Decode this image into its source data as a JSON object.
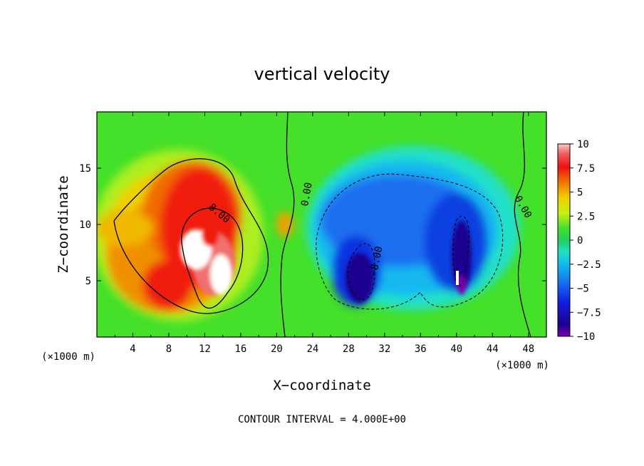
{
  "chart_data": {
    "type": "heatmap",
    "title": "vertical velocity",
    "xlabel": "X−coordinate",
    "ylabel": "Z−coordinate",
    "x_unit": "(×1000 m)",
    "z_unit": "(×1000 m)",
    "xlim": [
      0,
      50
    ],
    "ylim": [
      0,
      20
    ],
    "x_ticks": [
      "4",
      "8",
      "12",
      "16",
      "20",
      "24",
      "28",
      "32",
      "36",
      "40",
      "44",
      "48"
    ],
    "y_ticks": [
      "5",
      "10",
      "15"
    ],
    "colorbar": {
      "min": -10,
      "max": 10,
      "ticks": [
        "10",
        "7.5",
        "5",
        "2.5",
        "0",
        "−2.5",
        "−5",
        "−7.5",
        "−10"
      ]
    },
    "contour_labels": [
      "8.00",
      "0.00",
      "−8.00",
      "0.00"
    ],
    "contour_interval_text": "CONTOUR INTERVAL = 4.000E+00",
    "features": [
      {
        "x": 12.5,
        "z": 8.5,
        "w": 11,
        "note": "updraft maximum"
      },
      {
        "x": 10,
        "z": 5,
        "w": 6.5,
        "note": "low-level updraft lobe"
      },
      {
        "x": 21,
        "z": 10,
        "w": 3.5,
        "note": "weak updraft"
      },
      {
        "x": 30,
        "z": 6,
        "w": -8.5,
        "note": "downdraft core"
      },
      {
        "x": 40.5,
        "z": 6,
        "w": -10,
        "note": "downdraft core"
      },
      {
        "x": 37,
        "z": 13,
        "w": -4.5,
        "note": "broad downdraft region"
      }
    ]
  }
}
